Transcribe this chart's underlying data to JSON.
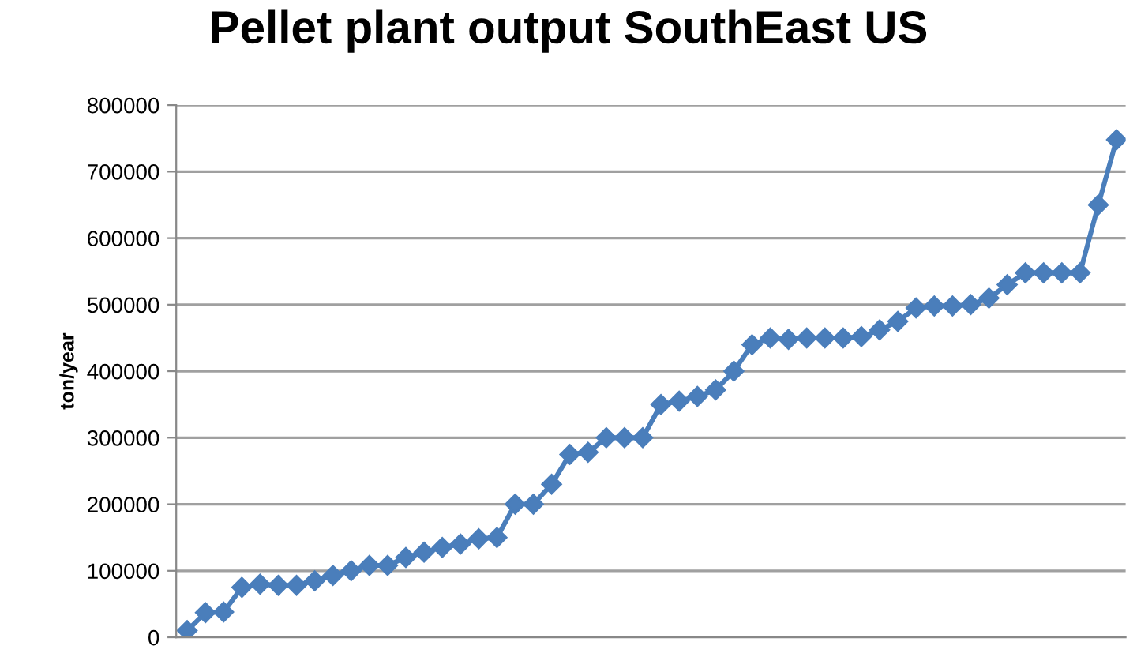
{
  "chart_data": {
    "type": "line",
    "title": "Pellet plant output SouthEast US",
    "ylabel": "ton/year",
    "categories": [
      null,
      null,
      null,
      null,
      null,
      null,
      null,
      null,
      null,
      null,
      null,
      null,
      null,
      null,
      null,
      null,
      null,
      null,
      null,
      null,
      null,
      null,
      null,
      null,
      null,
      null,
      null,
      null,
      null,
      null,
      null,
      null,
      null,
      null,
      null,
      null,
      null,
      null,
      null,
      null,
      null,
      null,
      null,
      null,
      null,
      null,
      null,
      null,
      null,
      null,
      null,
      null
    ],
    "series": [
      {
        "color": "#4a7ebb",
        "values": [
          10000,
          37000,
          38000,
          75000,
          80000,
          78000,
          78000,
          85000,
          93000,
          100000,
          108000,
          108000,
          120000,
          128000,
          135000,
          140000,
          148000,
          150000,
          200000,
          200000,
          230000,
          275000,
          278000,
          300000,
          300000,
          300000,
          350000,
          355000,
          362000,
          372000,
          400000,
          440000,
          450000,
          448000,
          450000,
          450000,
          450000,
          452000,
          462000,
          475000,
          495000,
          498000,
          498000,
          500000,
          510000,
          530000,
          548000,
          548000,
          548000,
          548000,
          650000,
          748000
        ]
      }
    ],
    "ylim": [
      0,
      800000
    ],
    "yticks": [
      0,
      100000,
      200000,
      300000,
      400000,
      500000,
      600000,
      700000,
      800000
    ],
    "grid": "y",
    "marker": "diamond",
    "line_style": "solid",
    "legend": false,
    "tick_labels": "y"
  }
}
